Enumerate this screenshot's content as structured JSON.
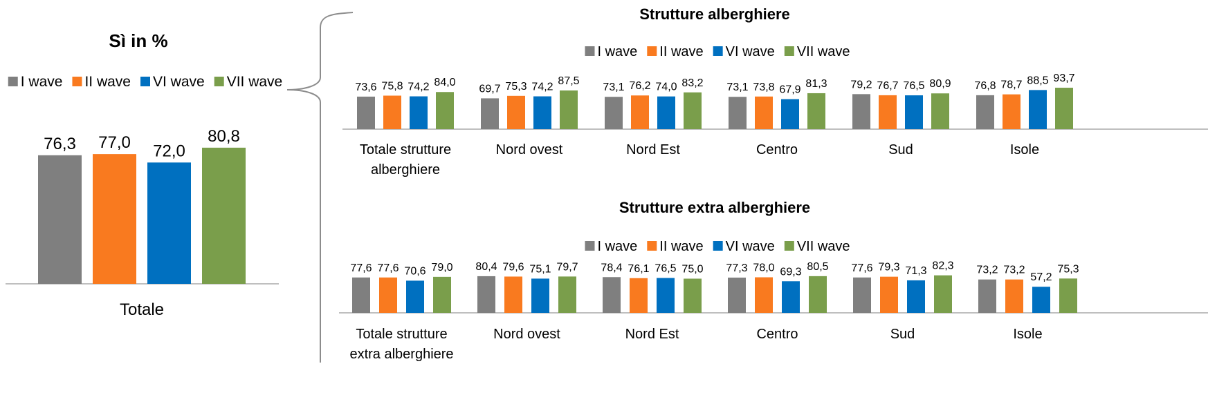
{
  "chart_data": [
    {
      "type": "bar",
      "title": "Sì in %",
      "categories": [
        "Totale"
      ],
      "series": [
        {
          "name": "I wave",
          "color": "#7f7f7f",
          "values": [
            76.3
          ],
          "value_labels": [
            "76,3"
          ]
        },
        {
          "name": "II wave",
          "color": "#f97a1f",
          "values": [
            77.0
          ],
          "value_labels": [
            "77,0"
          ]
        },
        {
          "name": "VI wave",
          "color": "#0070c0",
          "values": [
            72.0
          ],
          "value_labels": [
            "72,0"
          ]
        },
        {
          "name": "VII wave",
          "color": "#7a9e4b",
          "values": [
            80.8
          ],
          "value_labels": [
            "80,8"
          ]
        }
      ]
    },
    {
      "type": "bar",
      "title": "Strutture alberghiere",
      "categories": [
        "Totale strutture alberghiere",
        "Nord ovest",
        "Nord Est",
        "Centro",
        "Sud",
        "Isole"
      ],
      "series": [
        {
          "name": "I wave",
          "color": "#7f7f7f",
          "values": [
            73.6,
            69.7,
            73.1,
            73.1,
            79.2,
            76.8
          ],
          "value_labels": [
            "73,6",
            "69,7",
            "73,1",
            "73,1",
            "79,2",
            "76,8"
          ]
        },
        {
          "name": "II wave",
          "color": "#f97a1f",
          "values": [
            75.8,
            75.3,
            76.2,
            73.8,
            76.7,
            78.7
          ],
          "value_labels": [
            "75,8",
            "75,3",
            "76,2",
            "73,8",
            "76,7",
            "78,7"
          ]
        },
        {
          "name": "VI wave",
          "color": "#0070c0",
          "values": [
            74.2,
            74.2,
            74.0,
            67.9,
            76.5,
            88.5
          ],
          "value_labels": [
            "74,2",
            "74,2",
            "74,0",
            "67,9",
            "76,5",
            "88,5"
          ]
        },
        {
          "name": "VII wave",
          "color": "#7a9e4b",
          "values": [
            84.0,
            87.5,
            83.2,
            81.3,
            80.9,
            93.7
          ],
          "value_labels": [
            "84,0",
            "87,5",
            "83,2",
            "81,3",
            "80,9",
            "93,7"
          ]
        }
      ]
    },
    {
      "type": "bar",
      "title": "Strutture extra alberghiere",
      "categories": [
        "Totale strutture extra alberghiere",
        "Nord ovest",
        "Nord Est",
        "Centro",
        "Sud",
        "Isole"
      ],
      "series": [
        {
          "name": "I wave",
          "color": "#7f7f7f",
          "values": [
            77.6,
            80.4,
            78.4,
            77.3,
            77.6,
            73.2
          ],
          "value_labels": [
            "77,6",
            "80,4",
            "78,4",
            "77,3",
            "77,6",
            "73,2"
          ]
        },
        {
          "name": "II wave",
          "color": "#f97a1f",
          "values": [
            77.6,
            79.6,
            76.1,
            78.0,
            79.3,
            73.2
          ],
          "value_labels": [
            "77,6",
            "79,6",
            "76,1",
            "78,0",
            "79,3",
            "73,2"
          ]
        },
        {
          "name": "VI wave",
          "color": "#0070c0",
          "values": [
            70.6,
            75.1,
            76.5,
            69.3,
            71.3,
            57.2
          ],
          "value_labels": [
            "70,6",
            "75,1",
            "76,5",
            "69,3",
            "71,3",
            "57,2"
          ]
        },
        {
          "name": "VII wave",
          "color": "#7a9e4b",
          "values": [
            79.0,
            79.7,
            75.0,
            80.5,
            82.3,
            75.3
          ],
          "value_labels": [
            "79,0",
            "79,7",
            "75,0",
            "80,5",
            "82,3",
            "75,3"
          ]
        }
      ]
    }
  ]
}
